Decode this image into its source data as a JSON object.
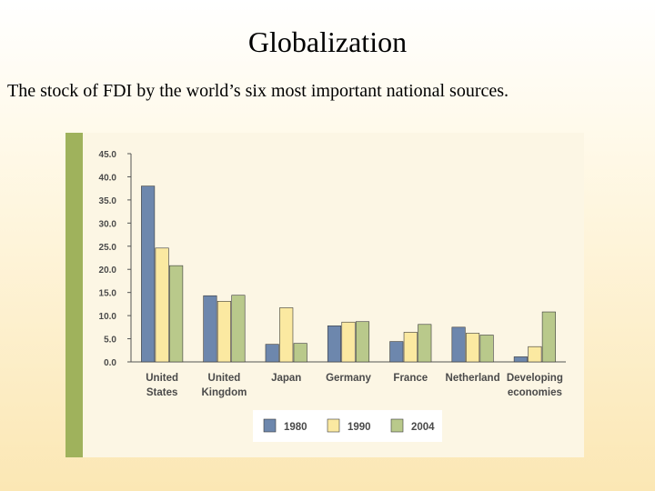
{
  "slide": {
    "title": "Globalization",
    "subtitle": "The stock of FDI by the world’s six most important national sources."
  },
  "colors": {
    "series": [
      "#6d87ad",
      "#fbe9a1",
      "#b9c98b"
    ],
    "stripe": "#9fb25c"
  },
  "chart_data": {
    "type": "bar",
    "categories": [
      [
        "United",
        "States"
      ],
      [
        "United",
        "Kingdom"
      ],
      [
        "Japan"
      ],
      [
        "Germany"
      ],
      [
        "France"
      ],
      [
        "Netherland"
      ],
      [
        "Developing",
        "economies"
      ]
    ],
    "series": [
      {
        "name": "1980",
        "values": [
          38.0,
          14.3,
          3.8,
          7.8,
          4.4,
          7.5,
          1.1
        ]
      },
      {
        "name": "1990",
        "values": [
          24.6,
          13.1,
          11.7,
          8.6,
          6.4,
          6.2,
          3.3
        ]
      },
      {
        "name": "2004",
        "values": [
          20.8,
          14.4,
          4.0,
          8.7,
          8.1,
          5.8,
          10.8
        ]
      }
    ],
    "yticks": [
      "0.0",
      "5.0",
      "10.0",
      "15.0",
      "20.0",
      "25.0",
      "30.0",
      "35.0",
      "40.0",
      "45.0"
    ],
    "ylim": [
      0,
      45
    ],
    "legend": "bottom-center",
    "grid": false
  }
}
